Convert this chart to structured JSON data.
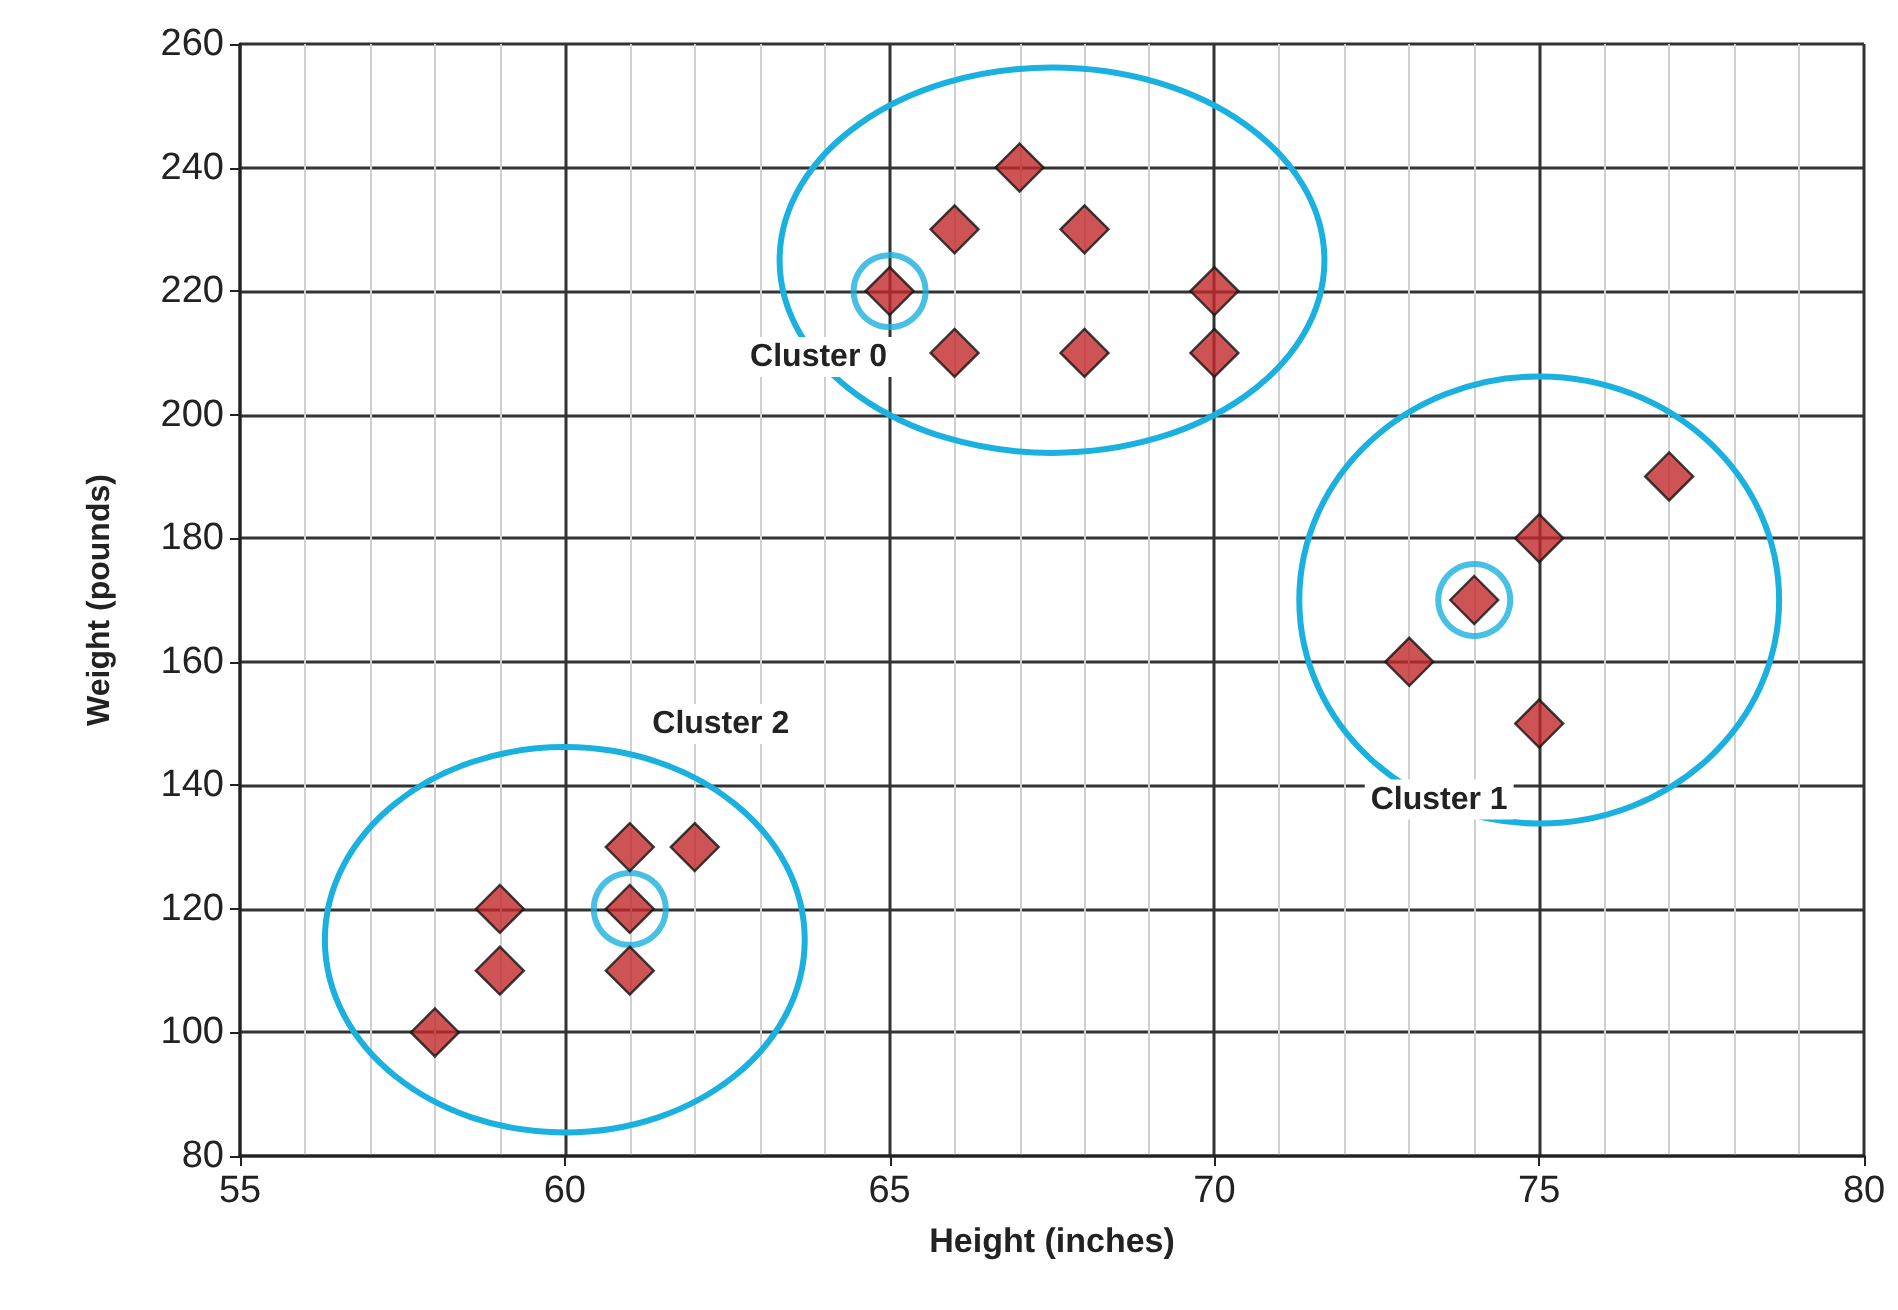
{
  "chart_data": {
    "type": "scatter",
    "xlabel": "Height (inches)",
    "ylabel": "Weight (pounds)",
    "marker": "diamond",
    "grid": true,
    "xlim": [
      55,
      80
    ],
    "xticks": [
      55,
      60,
      65,
      70,
      75,
      80
    ],
    "ylim": [
      80,
      260
    ],
    "yticks": [
      80,
      100,
      120,
      140,
      160,
      180,
      200,
      220,
      240,
      260
    ],
    "series": [
      {
        "name": "Cluster 0",
        "color": "#c0282a",
        "x": [
          65,
          66,
          67,
          68,
          70,
          66,
          68,
          70
        ],
        "values": [
          220,
          230,
          240,
          230,
          220,
          210,
          210,
          210
        ]
      },
      {
        "name": "Cluster 1",
        "color": "#c0282a",
        "x": [
          73,
          74,
          75,
          77,
          75
        ],
        "values": [
          160,
          170,
          180,
          190,
          150
        ]
      },
      {
        "name": "Cluster 2",
        "color": "#c0282a",
        "x": [
          58,
          59,
          59,
          61,
          62,
          61,
          61
        ],
        "values": [
          100,
          110,
          120,
          130,
          130,
          120,
          110
        ]
      },
      {
        "color": "#1ab0e0",
        "marker": "circle",
        "x": [
          65,
          74,
          61
        ],
        "values": [
          220,
          170,
          120
        ]
      }
    ]
  }
}
